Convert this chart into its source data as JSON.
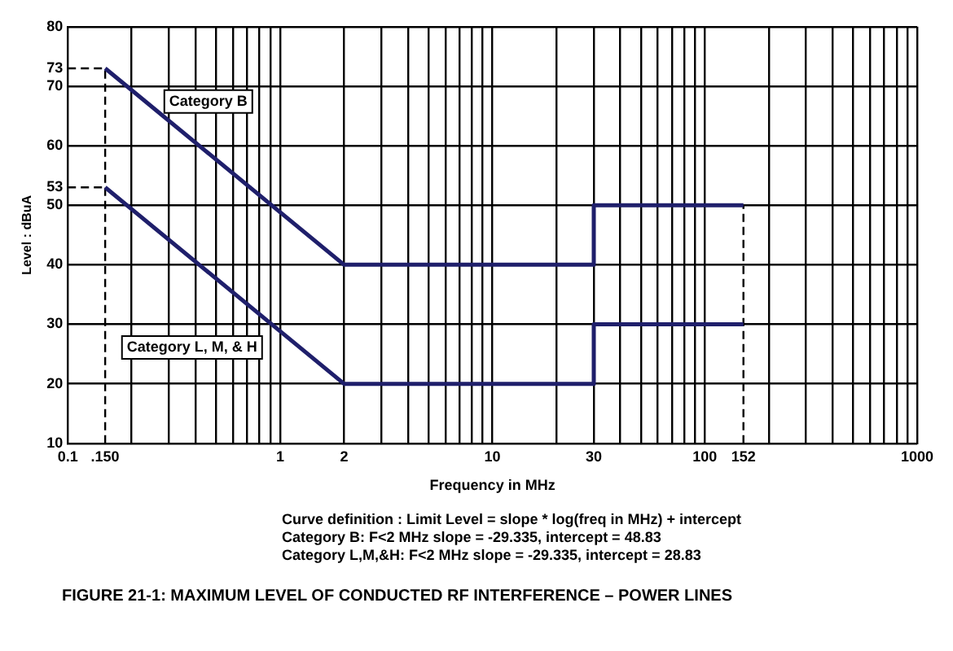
{
  "chart_data": {
    "type": "line",
    "title": "FIGURE 21-1: MAXIMUM LEVEL OF CONDUCTED RF INTERFERENCE – POWER LINES",
    "xlabel": "Frequency in MHz",
    "ylabel": "Level : dBuA",
    "annotations": [
      "Curve definition : Limit Level = slope * log(freq in MHz) + intercept",
      "Category B: F<2 MHz slope = -29.335, intercept = 48.83",
      "Category L,M,&H: F<2 MHz slope = -29.335, intercept = 28.83"
    ],
    "series": [
      {
        "name": "Category B",
        "color": "#1f1f6b",
        "x": [
          0.15,
          2,
          30,
          30,
          152
        ],
        "values": [
          73,
          40,
          40,
          50,
          50
        ]
      },
      {
        "name": "Category L, M, & H",
        "color": "#1f1f6b",
        "x": [
          0.15,
          2,
          30,
          30,
          152
        ],
        "values": [
          53,
          20,
          20,
          30,
          30
        ]
      },
      {
        "color": "#000000",
        "line_style": "dashed",
        "x": [
          0.1,
          0.15
        ],
        "values": [
          73,
          73
        ]
      },
      {
        "color": "#000000",
        "line_style": "dashed",
        "x": [
          0.1,
          0.15
        ],
        "values": [
          53,
          53
        ]
      },
      {
        "color": "#000000",
        "line_style": "dashed",
        "x": [
          0.15,
          0.15
        ],
        "values": [
          10,
          73
        ]
      },
      {
        "color": "#000000",
        "line_style": "dashed",
        "x": [
          152,
          152
        ],
        "values": [
          10,
          50
        ]
      }
    ],
    "log": "x",
    "xlim": [
      0.1,
      1000
    ],
    "ylim": [
      10,
      80
    ],
    "xticks": [
      0.1,
      {
        "value": 0.15,
        "label": ".150"
      },
      {
        "value": 0.2,
        "label": null
      },
      {
        "value": 0.3,
        "label": null
      },
      {
        "value": 0.4,
        "label": null
      },
      {
        "value": 0.5,
        "label": null
      },
      {
        "value": 0.6,
        "label": null
      },
      {
        "value": 0.7,
        "label": null
      },
      {
        "value": 0.8,
        "label": null
      },
      {
        "value": 0.9,
        "label": null
      },
      1,
      2,
      {
        "value": 3,
        "label": null
      },
      {
        "value": 4,
        "label": null
      },
      {
        "value": 5,
        "label": null
      },
      {
        "value": 6,
        "label": null
      },
      {
        "value": 7,
        "label": null
      },
      {
        "value": 8,
        "label": null
      },
      {
        "value": 9,
        "label": null
      },
      10,
      {
        "value": 20,
        "label": null
      },
      30,
      {
        "value": 40,
        "label": null
      },
      {
        "value": 50,
        "label": null
      },
      {
        "value": 60,
        "label": null
      },
      {
        "value": 70,
        "label": null
      },
      {
        "value": 80,
        "label": null
      },
      {
        "value": 90,
        "label": null
      },
      100,
      152,
      {
        "value": 200,
        "label": null
      },
      {
        "value": 300,
        "label": null
      },
      {
        "value": 400,
        "label": null
      },
      {
        "value": 500,
        "label": null
      },
      {
        "value": 600,
        "label": null
      },
      {
        "value": 700,
        "label": null
      },
      {
        "value": 800,
        "label": null
      },
      {
        "value": 900,
        "label": null
      },
      1000
    ],
    "yticks": [
      10,
      20,
      30,
      40,
      50,
      53,
      60,
      70,
      73,
      80
    ],
    "grid": true,
    "legend": false,
    "marker": "none",
    "line_style": "solid"
  }
}
